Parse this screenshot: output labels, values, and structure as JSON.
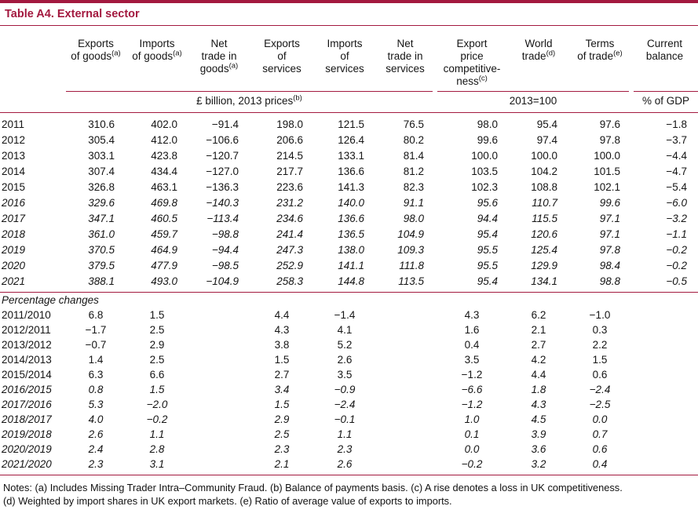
{
  "accent": "#a3193f",
  "title": "Table A4. External sector",
  "columns": [
    {
      "label": "",
      "sup": ""
    },
    {
      "label": "Exports\nof goods",
      "sup": "(a)"
    },
    {
      "label": "Imports\nof goods",
      "sup": "(a)"
    },
    {
      "label": "Net\ntrade in\ngoods",
      "sup": "(a)"
    },
    {
      "label": "Exports\nof\nservices",
      "sup": ""
    },
    {
      "label": "Imports\nof\nservices",
      "sup": ""
    },
    {
      "label": "Net\ntrade in\nservices",
      "sup": ""
    },
    {
      "label": "Export\nprice\ncompetitive-\nness",
      "sup": "(c)"
    },
    {
      "label": "World\ntrade",
      "sup": "(d)"
    },
    {
      "label": "Terms\nof trade",
      "sup": "(e)"
    },
    {
      "label": "Current\nbalance",
      "sup": ""
    }
  ],
  "units": {
    "billion": "£ billion, 2013 prices",
    "billion_sup": "(b)",
    "index": "2013=100",
    "gdp": "% of GDP"
  },
  "annual_rows": [
    {
      "label": "2011",
      "italic": false,
      "values": [
        "310.6",
        "402.0",
        "−91.4",
        "198.0",
        "121.5",
        "76.5",
        "98.0",
        "95.4",
        "97.6",
        "−1.8"
      ]
    },
    {
      "label": "2012",
      "italic": false,
      "values": [
        "305.4",
        "412.0",
        "−106.6",
        "206.6",
        "126.4",
        "80.2",
        "99.6",
        "97.4",
        "97.8",
        "−3.7"
      ]
    },
    {
      "label": "2013",
      "italic": false,
      "values": [
        "303.1",
        "423.8",
        "−120.7",
        "214.5",
        "133.1",
        "81.4",
        "100.0",
        "100.0",
        "100.0",
        "−4.4"
      ]
    },
    {
      "label": "2014",
      "italic": false,
      "values": [
        "307.4",
        "434.4",
        "−127.0",
        "217.7",
        "136.6",
        "81.2",
        "103.5",
        "104.2",
        "101.5",
        "−4.7"
      ]
    },
    {
      "label": "2015",
      "italic": false,
      "values": [
        "326.8",
        "463.1",
        "−136.3",
        "223.6",
        "141.3",
        "82.3",
        "102.3",
        "108.8",
        "102.1",
        "−5.4"
      ]
    },
    {
      "label": "2016",
      "italic": true,
      "values": [
        "329.6",
        "469.8",
        "−140.3",
        "231.2",
        "140.0",
        "91.1",
        "95.6",
        "110.7",
        "99.6",
        "−6.0"
      ]
    },
    {
      "label": "2017",
      "italic": true,
      "values": [
        "347.1",
        "460.5",
        "−113.4",
        "234.6",
        "136.6",
        "98.0",
        "94.4",
        "115.5",
        "97.1",
        "−3.2"
      ]
    },
    {
      "label": "2018",
      "italic": true,
      "values": [
        "361.0",
        "459.7",
        "−98.8",
        "241.4",
        "136.5",
        "104.9",
        "95.4",
        "120.6",
        "97.1",
        "−1.1"
      ]
    },
    {
      "label": "2019",
      "italic": true,
      "values": [
        "370.5",
        "464.9",
        "−94.4",
        "247.3",
        "138.0",
        "109.3",
        "95.5",
        "125.4",
        "97.8",
        "−0.2"
      ]
    },
    {
      "label": "2020",
      "italic": true,
      "values": [
        "379.5",
        "477.9",
        "−98.5",
        "252.9",
        "141.1",
        "111.8",
        "95.5",
        "129.9",
        "98.4",
        "−0.2"
      ]
    },
    {
      "label": "2021",
      "italic": true,
      "values": [
        "388.1",
        "493.0",
        "−104.9",
        "258.3",
        "144.8",
        "113.5",
        "95.4",
        "134.1",
        "98.8",
        "−0.5"
      ]
    }
  ],
  "pct_label": "Percentage changes",
  "pct_rows": [
    {
      "label": "2011/2010",
      "italic": false,
      "values": [
        "6.8",
        "1.5",
        "",
        "4.4",
        "−1.4",
        "",
        "4.3",
        "6.2",
        "−1.0",
        ""
      ]
    },
    {
      "label": "2012/2011",
      "italic": false,
      "values": [
        "−1.7",
        "2.5",
        "",
        "4.3",
        "4.1",
        "",
        "1.6",
        "2.1",
        "0.3",
        ""
      ]
    },
    {
      "label": "2013/2012",
      "italic": false,
      "values": [
        "−0.7",
        "2.9",
        "",
        "3.8",
        "5.2",
        "",
        "0.4",
        "2.7",
        "2.2",
        ""
      ]
    },
    {
      "label": "2014/2013",
      "italic": false,
      "values": [
        "1.4",
        "2.5",
        "",
        "1.5",
        "2.6",
        "",
        "3.5",
        "4.2",
        "1.5",
        ""
      ]
    },
    {
      "label": "2015/2014",
      "italic": false,
      "values": [
        "6.3",
        "6.6",
        "",
        "2.7",
        "3.5",
        "",
        "−1.2",
        "4.4",
        "0.6",
        ""
      ]
    },
    {
      "label": "2016/2015",
      "italic": true,
      "values": [
        "0.8",
        "1.5",
        "",
        "3.4",
        "−0.9",
        "",
        "−6.6",
        "1.8",
        "−2.4",
        ""
      ]
    },
    {
      "label": "2017/2016",
      "italic": true,
      "values": [
        "5.3",
        "−2.0",
        "",
        "1.5",
        "−2.4",
        "",
        "−1.2",
        "4.3",
        "−2.5",
        ""
      ]
    },
    {
      "label": "2018/2017",
      "italic": true,
      "values": [
        "4.0",
        "−0.2",
        "",
        "2.9",
        "−0.1",
        "",
        "1.0",
        "4.5",
        "0.0",
        ""
      ]
    },
    {
      "label": "2019/2018",
      "italic": true,
      "values": [
        "2.6",
        "1.1",
        "",
        "2.5",
        "1.1",
        "",
        "0.1",
        "3.9",
        "0.7",
        ""
      ]
    },
    {
      "label": "2020/2019",
      "italic": true,
      "values": [
        "2.4",
        "2.8",
        "",
        "2.3",
        "2.3",
        "",
        "0.0",
        "3.6",
        "0.6",
        ""
      ]
    },
    {
      "label": "2021/2020",
      "italic": true,
      "values": [
        "2.3",
        "3.1",
        "",
        "2.1",
        "2.6",
        "",
        "−0.2",
        "3.2",
        "0.4",
        ""
      ]
    }
  ],
  "notes": {
    "line1": "Notes: (a) Includes Missing Trader Intra–Community Fraud. (b) Balance of payments basis. (c) A rise denotes a loss in UK competitiveness.",
    "line2": "(d) Weighted by import shares in UK export markets. (e) Ratio of average value of exports to imports."
  }
}
